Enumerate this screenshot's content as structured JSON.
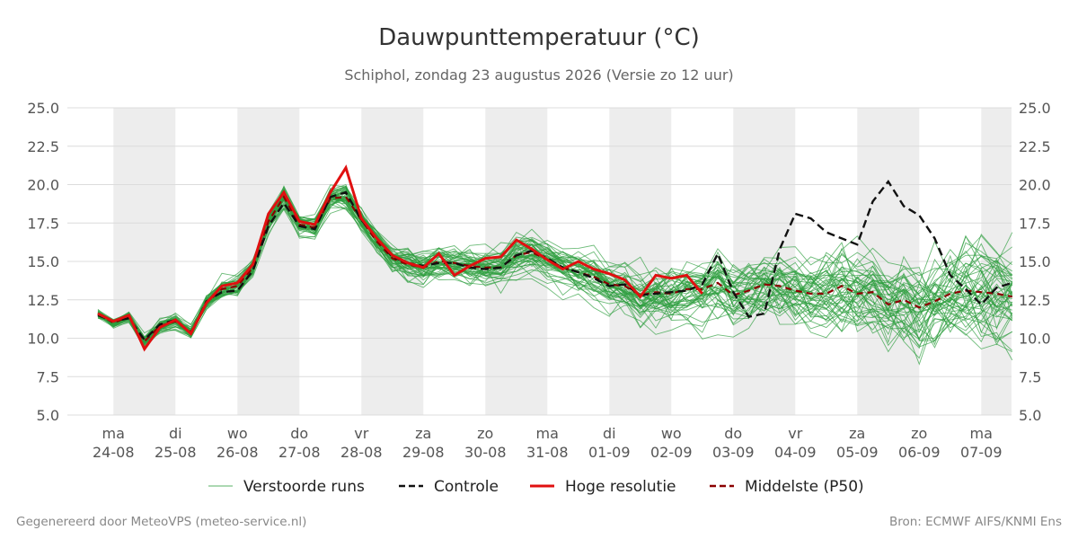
{
  "chart_data": {
    "type": "line",
    "title": "Dauwpunttemperatuur (°C)",
    "subtitle": "Schiphol, zondag 23 augustus 2026 (Versie zo 12 uur)",
    "ylim": [
      5.0,
      25.0
    ],
    "yticks": [
      "5.0",
      "7.5",
      "10.0",
      "12.5",
      "15.0",
      "17.5",
      "20.0",
      "22.5",
      "25.0"
    ],
    "xlim": [
      0,
      14.75
    ],
    "x_days": [
      {
        "day": "ma",
        "date": "24-08"
      },
      {
        "day": "di",
        "date": "25-08"
      },
      {
        "day": "wo",
        "date": "26-08"
      },
      {
        "day": "do",
        "date": "27-08"
      },
      {
        "day": "vr",
        "date": "28-08"
      },
      {
        "day": "za",
        "date": "29-08"
      },
      {
        "day": "zo",
        "date": "30-08"
      },
      {
        "day": "ma",
        "date": "31-08"
      },
      {
        "day": "di",
        "date": "01-09"
      },
      {
        "day": "wo",
        "date": "02-09"
      },
      {
        "day": "do",
        "date": "03-09"
      },
      {
        "day": "vr",
        "date": "04-09"
      },
      {
        "day": "za",
        "date": "05-09"
      },
      {
        "day": "zo",
        "date": "06-09"
      },
      {
        "day": "ma",
        "date": "07-09"
      }
    ],
    "legend": [
      {
        "label": "Verstoorde runs",
        "color": "#2e9e3e",
        "style": "thin"
      },
      {
        "label": "Controle",
        "color": "#111111",
        "style": "dashed"
      },
      {
        "label": "Hoge resolutie",
        "color": "#e01010",
        "style": "solid"
      },
      {
        "label": "Middelste (P50)",
        "color": "#8b0000",
        "style": "dashed"
      }
    ],
    "controle": {
      "x": [
        0,
        0.25,
        0.5,
        0.75,
        1,
        1.25,
        1.5,
        1.75,
        2,
        2.25,
        2.5,
        2.75,
        3,
        3.25,
        3.5,
        3.75,
        4,
        4.25,
        4.5,
        4.75,
        5,
        5.25,
        5.5,
        5.75,
        6,
        6.25,
        6.5,
        6.75,
        7,
        7.25,
        7.5,
        7.75,
        8,
        8.25,
        8.5,
        8.75,
        9,
        9.25,
        9.5,
        9.75,
        10,
        10.25,
        10.5,
        10.75,
        11,
        11.25,
        11.5,
        11.75,
        12,
        12.25,
        12.5,
        12.75,
        13,
        13.25,
        13.5,
        13.75,
        14,
        14.25,
        14.5,
        14.75
      ],
      "y": [
        11.5,
        11.1,
        11.3,
        9.9,
        10.9,
        11.2,
        10.3,
        12.4,
        13.0,
        13.1,
        14.4,
        17.3,
        18.8,
        17.3,
        17.1,
        19.2,
        19.5,
        17.7,
        16.5,
        15.3,
        14.9,
        14.7,
        14.9,
        14.9,
        14.6,
        14.5,
        14.6,
        15.4,
        15.7,
        15.2,
        14.6,
        14.3,
        13.9,
        13.4,
        13.5,
        12.8,
        12.9,
        13.0,
        13.1,
        13.5,
        15.5,
        13.0,
        11.4,
        11.6,
        15.8,
        18.1,
        17.8,
        16.9,
        16.5,
        16.1,
        18.9,
        20.2,
        18.6,
        18.0,
        16.5,
        14.1,
        13.2,
        12.2,
        13.3,
        13.6
      ]
    },
    "hoge_resolutie": {
      "x": [
        0,
        0.25,
        0.5,
        0.75,
        1,
        1.25,
        1.5,
        1.75,
        2,
        2.25,
        2.5,
        2.75,
        3,
        3.25,
        3.5,
        3.75,
        4,
        4.25,
        4.5,
        4.75,
        5,
        5.25,
        5.5,
        5.75,
        6,
        6.25,
        6.5,
        6.75,
        7,
        7.25,
        7.5,
        7.75,
        8,
        8.25,
        8.5,
        8.75,
        9,
        9.25,
        9.5,
        9.75
      ],
      "y": [
        11.6,
        11.1,
        11.5,
        9.3,
        10.7,
        11.2,
        10.3,
        12.3,
        13.4,
        13.6,
        14.8,
        18.1,
        19.5,
        17.6,
        17.4,
        19.5,
        21.1,
        17.8,
        16.5,
        15.4,
        14.9,
        14.6,
        15.5,
        14.1,
        14.7,
        15.2,
        15.3,
        16.4,
        15.8,
        15.1,
        14.5,
        15.0,
        14.5,
        14.2,
        13.8,
        12.7,
        14.1,
        13.9,
        14.1,
        12.9
      ]
    },
    "middelste_p50": {
      "x": [
        0,
        0.25,
        0.5,
        0.75,
        1,
        1.25,
        1.5,
        1.75,
        2,
        2.25,
        2.5,
        2.75,
        3,
        3.25,
        3.5,
        3.75,
        4,
        4.25,
        4.5,
        4.75,
        5,
        5.25,
        5.5,
        5.75,
        6,
        6.25,
        6.5,
        6.75,
        7,
        7.25,
        7.5,
        7.75,
        8,
        8.25,
        8.5,
        8.75,
        9,
        9.25,
        9.5,
        9.75,
        10,
        10.25,
        10.5,
        10.75,
        11,
        11.25,
        11.5,
        11.75,
        12,
        12.25,
        12.5,
        12.75,
        13,
        13.25,
        13.5,
        13.75,
        14,
        14.25,
        14.5,
        14.75
      ],
      "y": [
        11.6,
        11.0,
        11.4,
        9.8,
        10.8,
        11.1,
        10.4,
        12.3,
        13.2,
        13.4,
        14.6,
        17.6,
        19.2,
        17.4,
        17.2,
        19.1,
        19.2,
        17.7,
        16.3,
        15.2,
        14.8,
        14.6,
        15.0,
        14.9,
        14.7,
        14.6,
        14.6,
        15.4,
        15.6,
        15.1,
        14.6,
        14.3,
        14.0,
        13.5,
        13.4,
        12.8,
        13.0,
        12.9,
        13.2,
        13.2,
        13.6,
        12.8,
        13.1,
        13.5,
        13.4,
        13.1,
        12.9,
        12.9,
        13.4,
        12.9,
        13.0,
        12.2,
        12.5,
        12.0,
        12.4,
        12.9,
        13.1,
        13.0,
        12.9,
        12.7
      ]
    },
    "verstoorde_runs": {
      "count": 50,
      "spread_sd_by_day": [
        0.3,
        0.4,
        0.6,
        0.6,
        0.7,
        0.9,
        1.0,
        1.1,
        1.3,
        1.5,
        1.8,
        2.1,
        2.3,
        2.5,
        2.6
      ]
    }
  },
  "footer": {
    "left": "Gegenereerd door MeteoVPS (meteo-service.nl)",
    "right": "Bron: ECMWF AIFS/KNMI Ens"
  }
}
